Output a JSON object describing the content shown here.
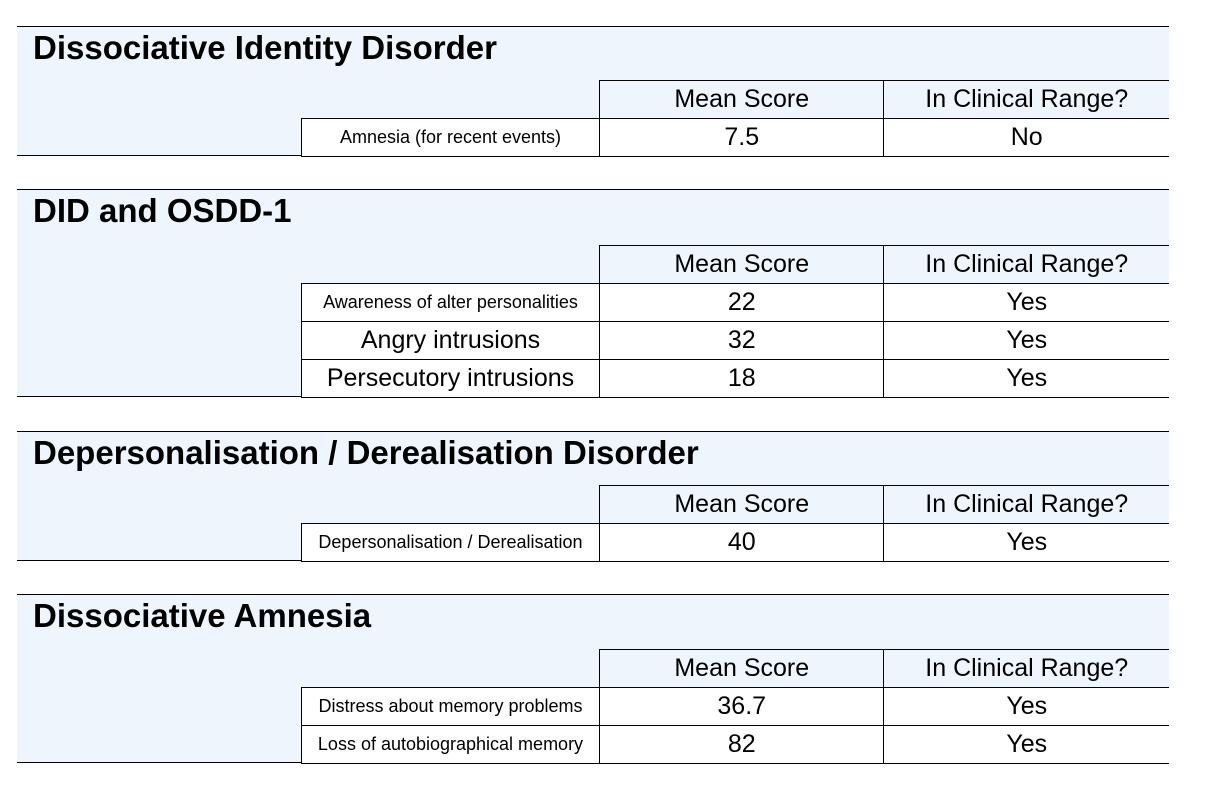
{
  "headers": {
    "mean_score": "Mean Score",
    "clinical_range": "In Clinical Range?"
  },
  "sections": [
    {
      "title": "Dissociative Identity Disorder",
      "rows": [
        {
          "label": "Amnesia (for recent events)",
          "mean": "7.5",
          "clinical": "No"
        }
      ]
    },
    {
      "title": "DID and OSDD-1",
      "rows": [
        {
          "label": "Awareness of alter personalities",
          "mean": "22",
          "clinical": "Yes"
        },
        {
          "label": "Angry intrusions",
          "mean": "32",
          "clinical": "Yes"
        },
        {
          "label": "Persecutory intrusions",
          "mean": "18",
          "clinical": "Yes"
        }
      ]
    },
    {
      "title": "Depersonalisation / Derealisation Disorder",
      "rows": [
        {
          "label": "Depersonalisation / Derealisation",
          "mean": "40",
          "clinical": "Yes"
        }
      ]
    },
    {
      "title": "Dissociative Amnesia",
      "rows": [
        {
          "label": "Distress about memory problems",
          "mean": "36.7",
          "clinical": "Yes"
        },
        {
          "label": "Loss of autobiographical memory",
          "mean": "82",
          "clinical": "Yes"
        }
      ]
    }
  ]
}
